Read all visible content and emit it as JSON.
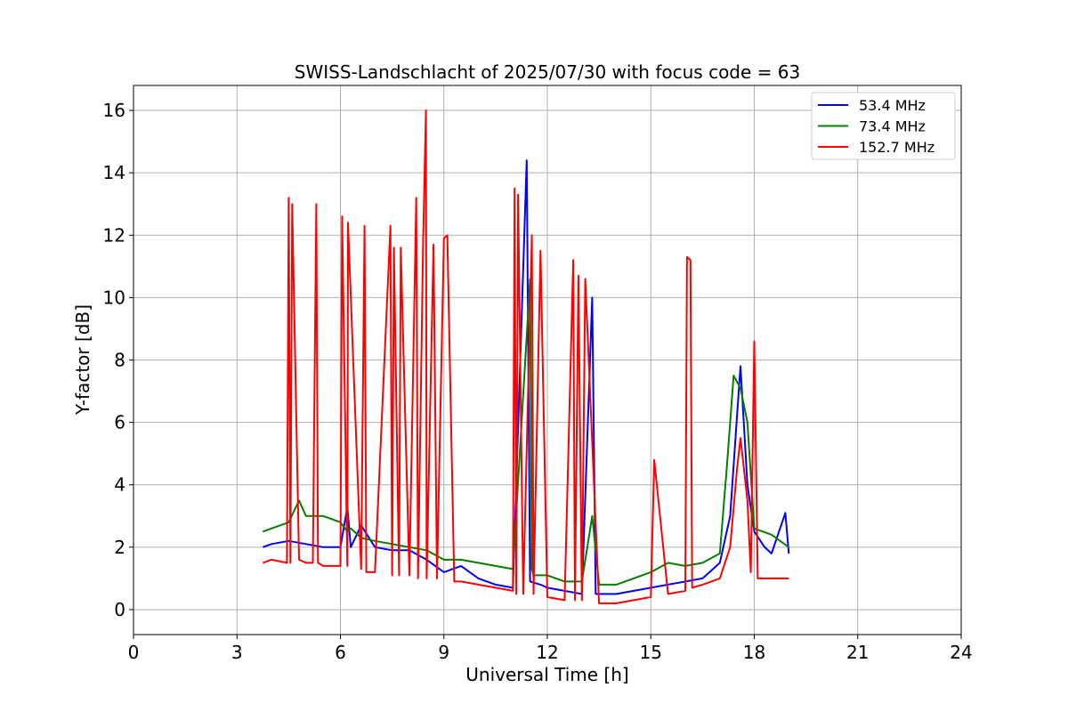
{
  "chart_data": {
    "type": "line",
    "title": "SWISS-Landschlacht of 2025/07/30 with focus code = 63",
    "xlabel": "Universal Time [h]",
    "ylabel": "Y-factor [dB]",
    "xlim": [
      0,
      24
    ],
    "ylim": [
      -0.8,
      16.8
    ],
    "xticks": [
      0,
      3,
      6,
      9,
      12,
      15,
      18,
      21,
      24
    ],
    "yticks": [
      0,
      2,
      4,
      6,
      8,
      10,
      12,
      14,
      16
    ],
    "grid": true,
    "legend_position": "top-right",
    "series": [
      {
        "name": "53.4 MHz",
        "color": "#0000ff",
        "legend_label": "  53.4 MHz",
        "x": [
          3.75,
          4.0,
          4.5,
          5.0,
          5.5,
          6.0,
          6.2,
          6.3,
          6.6,
          7.0,
          7.5,
          8.0,
          8.5,
          9.0,
          9.5,
          10.0,
          10.5,
          11.0,
          11.4,
          11.5,
          11.8,
          12.0,
          12.5,
          13.0,
          13.3,
          13.4,
          13.5,
          14.0,
          14.5,
          15.0,
          15.5,
          16.0,
          16.5,
          17.0,
          17.3,
          17.5,
          17.6,
          17.8,
          18.0,
          18.3,
          18.5,
          18.9,
          19.0
        ],
        "y": [
          2.0,
          2.1,
          2.2,
          2.1,
          2.0,
          2.0,
          3.3,
          2.0,
          2.7,
          2.0,
          1.9,
          1.9,
          1.6,
          1.2,
          1.4,
          1.0,
          0.8,
          0.7,
          14.4,
          0.9,
          0.8,
          0.7,
          0.6,
          0.5,
          10.0,
          0.5,
          0.5,
          0.5,
          0.6,
          0.7,
          0.8,
          0.9,
          1.0,
          1.5,
          3.0,
          6.2,
          7.8,
          4.0,
          2.5,
          2.0,
          1.8,
          3.1,
          1.8
        ]
      },
      {
        "name": "73.4 MHz",
        "color": "#008000",
        "legend_label": "  73.4 MHz",
        "x": [
          3.75,
          4.0,
          4.5,
          4.8,
          5.0,
          5.5,
          6.0,
          6.2,
          6.3,
          6.6,
          7.0,
          7.5,
          8.0,
          8.5,
          9.0,
          9.5,
          10.0,
          10.5,
          11.0,
          11.5,
          11.55,
          11.6,
          12.0,
          12.5,
          13.0,
          13.3,
          13.5,
          14.0,
          14.5,
          15.0,
          15.5,
          16.0,
          16.5,
          17.0,
          17.2,
          17.4,
          17.6,
          17.8,
          18.0,
          18.5,
          19.0
        ],
        "y": [
          2.5,
          2.6,
          2.8,
          3.5,
          3.0,
          3.0,
          2.8,
          2.5,
          2.6,
          2.3,
          2.2,
          2.1,
          2.0,
          1.9,
          1.6,
          1.6,
          1.5,
          1.4,
          1.3,
          10.6,
          1.3,
          1.1,
          1.1,
          0.9,
          0.9,
          3.0,
          0.8,
          0.8,
          1.0,
          1.2,
          1.5,
          1.4,
          1.5,
          1.8,
          4.5,
          7.5,
          7.1,
          6.0,
          2.6,
          2.4,
          2.0
        ]
      },
      {
        "name": "152.7 MHz",
        "color": "#ff0000",
        "legend_label": "152.7 MHz",
        "x": [
          3.75,
          4.0,
          4.45,
          4.5,
          4.55,
          4.6,
          4.8,
          5.0,
          5.2,
          5.3,
          5.35,
          5.5,
          6.0,
          6.05,
          6.2,
          6.22,
          6.6,
          6.7,
          6.75,
          7.0,
          7.45,
          7.5,
          7.55,
          7.7,
          7.75,
          8.0,
          8.2,
          8.25,
          8.4,
          8.48,
          8.5,
          8.7,
          8.8,
          9.0,
          9.1,
          9.3,
          9.5,
          10.0,
          10.5,
          11.0,
          11.05,
          11.1,
          11.15,
          11.3,
          11.55,
          11.6,
          11.8,
          12.0,
          12.5,
          12.75,
          12.8,
          12.9,
          13.0,
          13.1,
          13.5,
          14.0,
          14.5,
          15.0,
          15.1,
          15.5,
          16.0,
          16.05,
          16.15,
          16.2,
          16.5,
          17.0,
          17.3,
          17.5,
          17.6,
          17.8,
          17.9,
          18.0,
          18.1,
          18.5,
          19.0
        ],
        "y": [
          1.5,
          1.6,
          1.5,
          13.2,
          1.5,
          13.0,
          1.6,
          1.5,
          1.5,
          13.0,
          1.5,
          1.4,
          1.4,
          12.6,
          1.4,
          12.4,
          1.3,
          12.3,
          1.2,
          1.2,
          12.3,
          1.1,
          11.6,
          1.1,
          11.6,
          1.1,
          13.2,
          1.0,
          11.9,
          16.0,
          1.0,
          11.7,
          1.0,
          11.9,
          12.0,
          0.9,
          0.9,
          0.8,
          0.7,
          0.6,
          13.5,
          0.5,
          13.3,
          0.5,
          12.0,
          0.5,
          11.5,
          0.4,
          0.3,
          11.2,
          0.3,
          10.7,
          0.3,
          10.6,
          0.2,
          0.2,
          0.3,
          0.4,
          4.8,
          0.5,
          0.6,
          11.3,
          11.2,
          0.7,
          0.8,
          1.0,
          2.0,
          4.5,
          5.5,
          3.5,
          1.2,
          8.6,
          1.0,
          1.0,
          1.0
        ]
      }
    ]
  }
}
